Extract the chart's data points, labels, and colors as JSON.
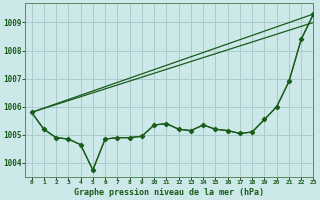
{
  "title": "Graphe pression niveau de la mer (hPa)",
  "background_color": "#cce8e8",
  "grid_color": "#aacccc",
  "line_color": "#1a5c1a",
  "xlim": [
    -0.5,
    23
  ],
  "ylim": [
    1003.5,
    1009.7
  ],
  "yticks": [
    1004,
    1005,
    1006,
    1007,
    1008,
    1009
  ],
  "xtick_labels": [
    "0",
    "1",
    "2",
    "3",
    "4",
    "5",
    "6",
    "7",
    "8",
    "9",
    "10",
    "11",
    "12",
    "13",
    "14",
    "15",
    "16",
    "17",
    "18",
    "19",
    "20",
    "21",
    "22",
    "23"
  ],
  "series_marker": {
    "x": [
      0,
      1,
      2,
      3,
      4,
      5,
      6,
      7,
      8,
      9,
      10,
      11,
      12,
      13,
      14,
      15,
      16,
      17,
      18,
      19,
      20,
      21,
      22,
      23
    ],
    "y": [
      1005.8,
      1005.2,
      1004.9,
      1004.85,
      1004.65,
      1003.75,
      1004.85,
      1004.9,
      1004.9,
      1004.95,
      1005.35,
      1005.4,
      1005.2,
      1005.15,
      1005.35,
      1005.2,
      1005.15,
      1005.05,
      1005.1,
      1005.55,
      1006.0,
      1006.9,
      1008.4,
      1009.3
    ]
  },
  "series_smooth": {
    "x": [
      0,
      1,
      2,
      3,
      4,
      5,
      6,
      7,
      8,
      9,
      10,
      11,
      12,
      13,
      14,
      15,
      16,
      17,
      18,
      19,
      20,
      21,
      22,
      23
    ],
    "y": [
      1005.8,
      1005.2,
      1004.9,
      1004.85,
      1004.65,
      1003.75,
      1004.85,
      1004.9,
      1004.9,
      1004.95,
      1005.35,
      1005.4,
      1005.2,
      1005.15,
      1005.35,
      1005.2,
      1005.15,
      1005.05,
      1005.1,
      1005.55,
      1006.0,
      1006.9,
      1008.4,
      1009.3
    ]
  },
  "series_line1": {
    "x": [
      0,
      23
    ],
    "y": [
      1005.8,
      1009.3
    ]
  },
  "series_line2": {
    "x": [
      0,
      23
    ],
    "y": [
      1005.8,
      1009.3
    ]
  }
}
